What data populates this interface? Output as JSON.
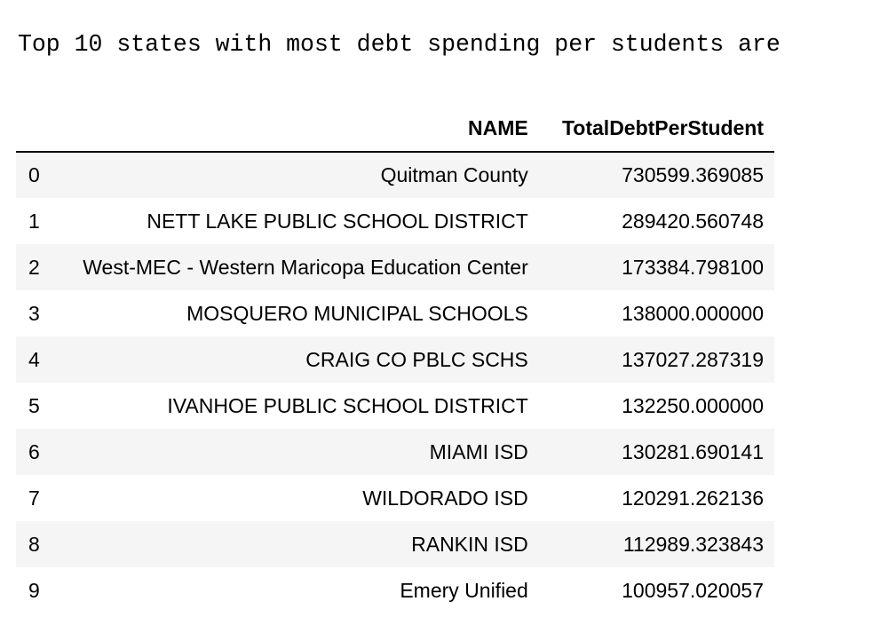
{
  "output": {
    "text": "Top 10 states with most debt spending per students are"
  },
  "table": {
    "columns": [
      "",
      "NAME",
      "TotalDebtPerStudent"
    ],
    "rows": [
      {
        "index": "0",
        "name": "Quitman County",
        "value": "730599.369085"
      },
      {
        "index": "1",
        "name": "NETT LAKE PUBLIC SCHOOL DISTRICT",
        "value": "289420.560748"
      },
      {
        "index": "2",
        "name": "West-MEC - Western Maricopa Education Center",
        "value": "173384.798100"
      },
      {
        "index": "3",
        "name": "MOSQUERO MUNICIPAL SCHOOLS",
        "value": "138000.000000"
      },
      {
        "index": "4",
        "name": "CRAIG CO PBLC SCHS",
        "value": "137027.287319"
      },
      {
        "index": "5",
        "name": "IVANHOE PUBLIC SCHOOL DISTRICT",
        "value": "132250.000000"
      },
      {
        "index": "6",
        "name": "MIAMI ISD",
        "value": "130281.690141"
      },
      {
        "index": "7",
        "name": "WILDORADO ISD",
        "value": "120291.262136"
      },
      {
        "index": "8",
        "name": "RANKIN ISD",
        "value": "112989.323843"
      },
      {
        "index": "9",
        "name": "Emery Unified",
        "value": "100957.020057"
      }
    ]
  }
}
